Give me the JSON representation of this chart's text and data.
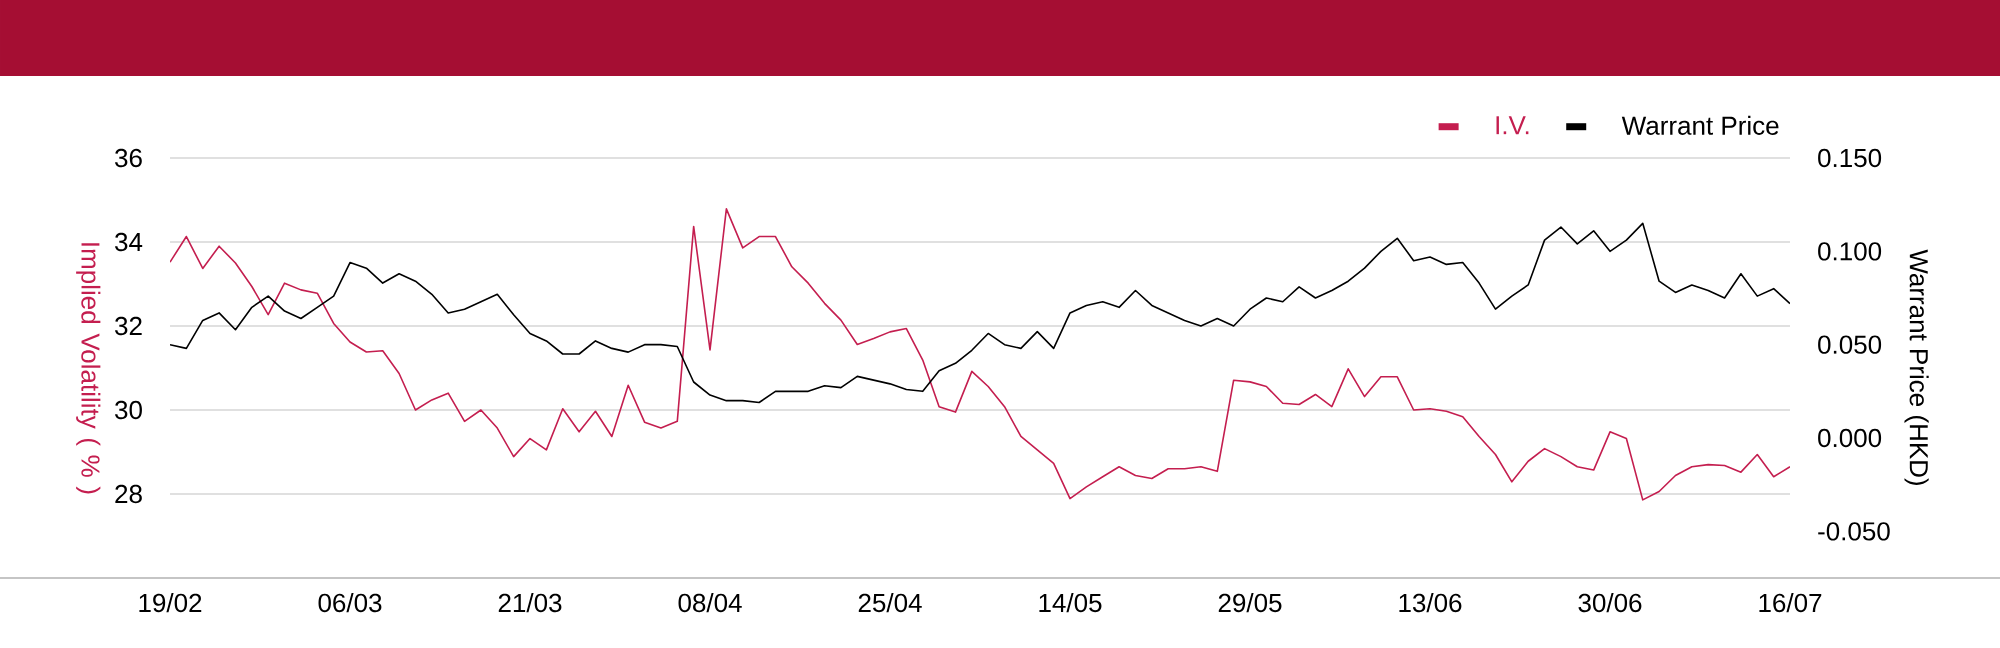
{
  "chart_data": {
    "type": "line",
    "xlabel": null,
    "ylabel": "Implied Volatility ( % )",
    "y2label": "Warrant Price (HKD)",
    "categories": [
      "19/02",
      null,
      null,
      null,
      null,
      null,
      null,
      null,
      null,
      null,
      null,
      "06/03",
      null,
      null,
      null,
      null,
      null,
      null,
      null,
      null,
      null,
      null,
      "21/03",
      null,
      null,
      null,
      null,
      null,
      null,
      null,
      null,
      null,
      null,
      "08/04",
      null,
      null,
      null,
      null,
      null,
      null,
      null,
      null,
      null,
      null,
      "25/04",
      null,
      null,
      null,
      null,
      null,
      null,
      null,
      null,
      null,
      null,
      "14/05",
      null,
      null,
      null,
      null,
      null,
      null,
      null,
      null,
      null,
      null,
      "29/05",
      null,
      null,
      null,
      null,
      null,
      null,
      null,
      null,
      null,
      null,
      "13/06",
      null,
      null,
      null,
      null,
      null,
      null,
      null,
      null,
      null,
      null,
      "30/06",
      null,
      null,
      null,
      null,
      null,
      null,
      null,
      null,
      null,
      null,
      "16/07"
    ],
    "series": [
      {
        "name": "I.V.",
        "color": "#c41e4f",
        "values": [
          33.52,
          34.13,
          33.37,
          33.9,
          33.5,
          32.94,
          32.27,
          33.02,
          32.86,
          32.78,
          32.06,
          31.62,
          31.38,
          31.41,
          30.87,
          30.0,
          30.24,
          30.4,
          29.73,
          30.0,
          29.57,
          28.89,
          29.32,
          29.05,
          30.03,
          29.48,
          29.97,
          29.37,
          30.59,
          29.71,
          29.57,
          29.73,
          34.37,
          31.43,
          34.79,
          33.86,
          34.13,
          34.13,
          33.41,
          33.02,
          32.54,
          32.14,
          31.56,
          31.7,
          31.86,
          31.94,
          31.19,
          30.08,
          29.95,
          30.92,
          30.56,
          30.08,
          29.37,
          29.05,
          28.73,
          27.89,
          28.17,
          28.41,
          28.65,
          28.44,
          28.37,
          28.6,
          28.6,
          28.65,
          28.54,
          30.71,
          30.67,
          30.56,
          30.16,
          30.13,
          30.37,
          30.08,
          30.98,
          30.32,
          30.79,
          30.79,
          30.0,
          30.03,
          29.97,
          29.84,
          29.37,
          28.94,
          28.29,
          28.78,
          29.08,
          28.89,
          28.65,
          28.57,
          29.48,
          29.32,
          27.86,
          28.06,
          28.44,
          28.65,
          28.7,
          28.68,
          28.52,
          28.94,
          28.41,
          28.65
        ]
      },
      {
        "name": "Warrant Price",
        "color": "#000000",
        "axis": "y2",
        "values": [
          0.05,
          0.048,
          0.063,
          0.067,
          0.058,
          0.07,
          0.076,
          0.068,
          0.064,
          0.07,
          0.076,
          0.094,
          0.091,
          0.083,
          0.088,
          0.084,
          0.077,
          0.067,
          0.069,
          0.073,
          0.077,
          0.066,
          0.056,
          0.052,
          0.045,
          0.045,
          0.052,
          0.048,
          0.046,
          0.05,
          0.05,
          0.049,
          0.03,
          0.023,
          0.02,
          0.02,
          0.019,
          0.025,
          0.025,
          0.025,
          0.028,
          0.027,
          0.033,
          0.031,
          0.029,
          0.026,
          0.025,
          0.036,
          0.04,
          0.047,
          0.056,
          0.05,
          0.048,
          0.057,
          0.048,
          0.067,
          0.071,
          0.073,
          0.07,
          0.079,
          0.071,
          0.067,
          0.063,
          0.06,
          0.064,
          0.06,
          0.069,
          0.075,
          0.073,
          0.081,
          0.075,
          0.079,
          0.084,
          0.091,
          0.1,
          0.107,
          0.095,
          0.097,
          0.093,
          0.094,
          0.083,
          0.069,
          0.076,
          0.082,
          0.106,
          0.113,
          0.104,
          0.111,
          0.1,
          0.106,
          0.115,
          0.084,
          0.078,
          0.082,
          0.079,
          0.075,
          0.088,
          0.076,
          0.08,
          0.072
        ]
      }
    ],
    "ylim": [
      26,
      36
    ],
    "yticks": [
      28,
      30,
      32,
      34,
      36
    ],
    "y2lim": [
      -0.075,
      0.15
    ],
    "y2ticks": [
      {
        "value": -0.05,
        "label": "-0.050"
      },
      {
        "value": 0,
        "label": "0.000"
      },
      {
        "value": 0.05,
        "label": "0.050"
      },
      {
        "value": 0.1,
        "label": "0.100"
      },
      {
        "value": 0.15,
        "label": "0.150"
      }
    ],
    "grid": "y",
    "legend": "top right"
  }
}
